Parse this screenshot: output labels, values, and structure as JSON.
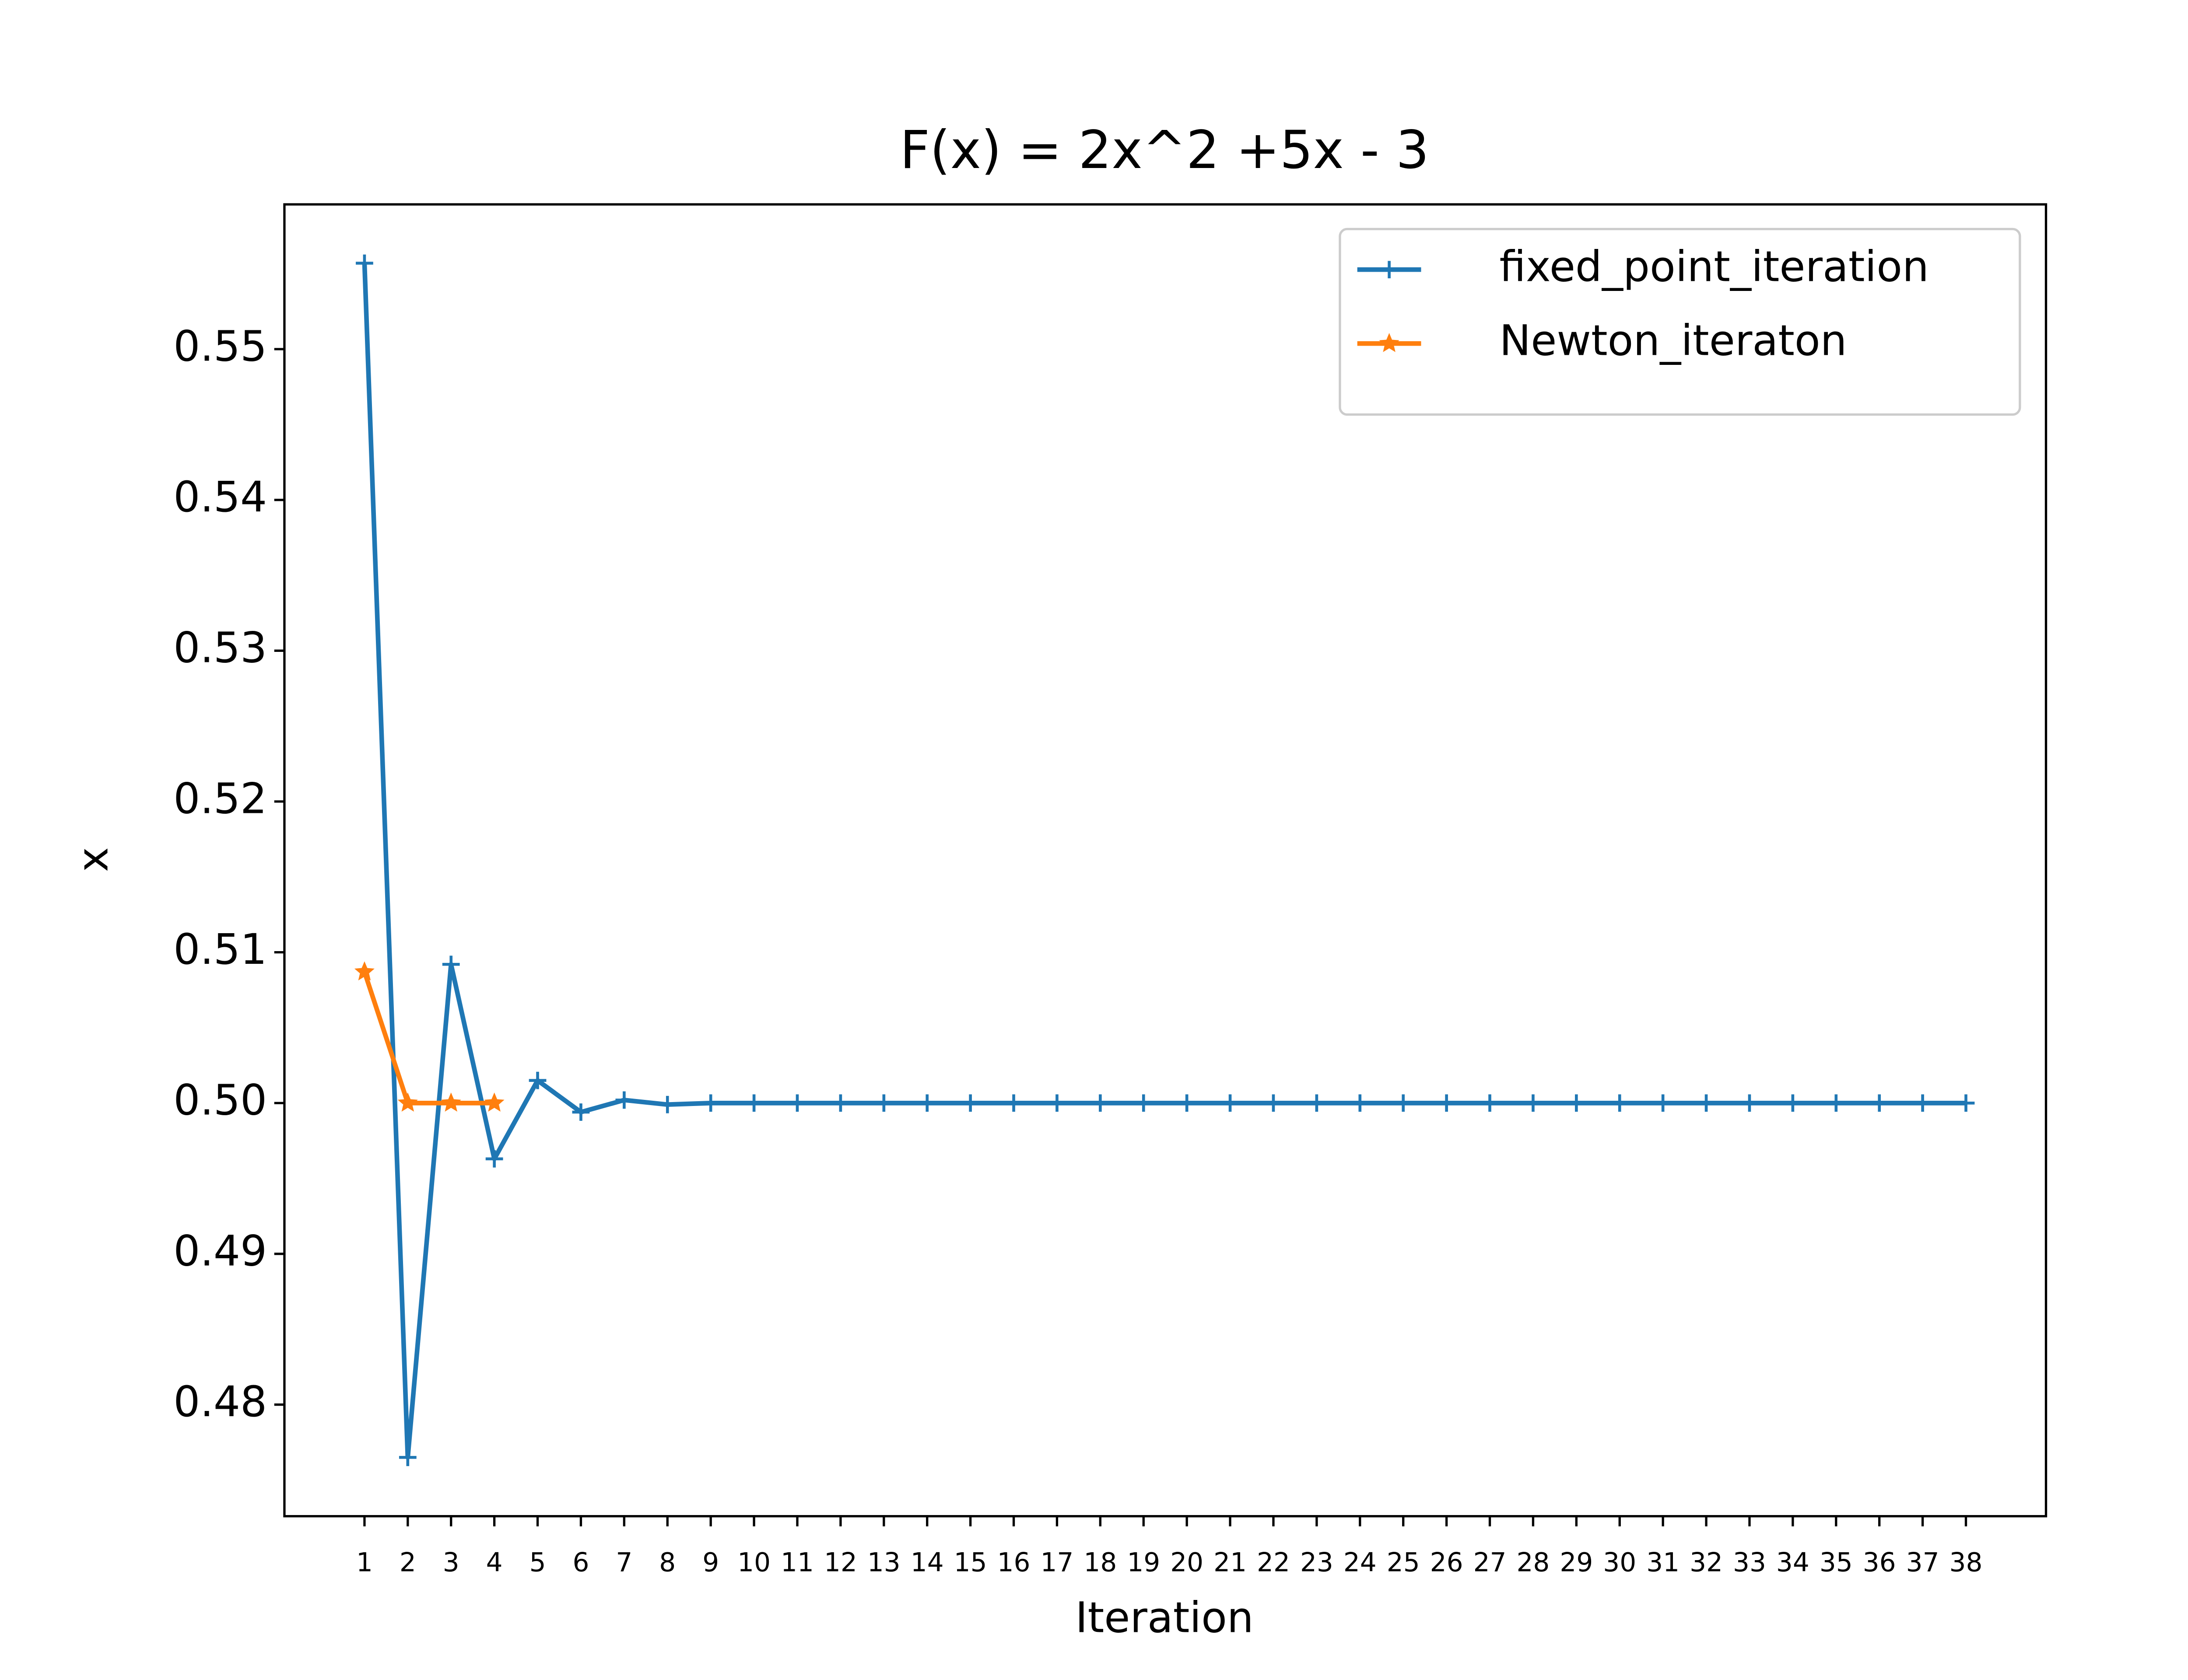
{
  "chart_data": {
    "type": "line",
    "title": "F(x) = 2x^2 +5x - 3",
    "xlabel": "Iteration",
    "ylabel": "x",
    "xlim": [
      -0.85,
      39.85
    ],
    "ylim": [
      0.4726,
      0.5596
    ],
    "xticks": [
      1,
      2,
      3,
      4,
      5,
      6,
      7,
      8,
      9,
      10,
      11,
      12,
      13,
      14,
      15,
      16,
      17,
      18,
      19,
      20,
      21,
      22,
      23,
      24,
      25,
      26,
      27,
      28,
      29,
      30,
      31,
      32,
      33,
      34,
      35,
      36,
      37,
      38
    ],
    "yticks": [
      0.48,
      0.49,
      {
        "value": 0.5,
        "label": "0.50"
      },
      0.51,
      0.52,
      0.53,
      0.54,
      0.55
    ],
    "legend": "upper right",
    "series": [
      {
        "name": "fixed_point_iteration",
        "color": "#1f77b4",
        "marker": "+",
        "x": [
          1,
          2,
          3,
          4,
          5,
          6,
          7,
          8,
          9,
          10,
          11,
          12,
          13,
          14,
          15,
          16,
          17,
          18,
          19,
          20,
          21,
          22,
          23,
          24,
          25,
          26,
          27,
          28,
          29,
          30,
          31,
          32,
          33,
          34,
          35,
          36,
          37,
          38
        ],
        "values": [
          0.5557,
          0.4765,
          0.5092,
          0.4963,
          0.5015,
          0.4994,
          0.5002,
          0.4999,
          0.5,
          0.5,
          0.5,
          0.5,
          0.5,
          0.5,
          0.5,
          0.5,
          0.5,
          0.5,
          0.5,
          0.5,
          0.5,
          0.5,
          0.5,
          0.5,
          0.5,
          0.5,
          0.5,
          0.5,
          0.5,
          0.5,
          0.5,
          0.5,
          0.5,
          0.5,
          0.5,
          0.5,
          0.5,
          0.5
        ]
      },
      {
        "name": "Newton_iteraton",
        "color": "#ff7f0e",
        "marker": "*",
        "x": [
          1,
          2,
          3,
          4
        ],
        "values": [
          0.5087,
          0.5,
          0.5,
          0.5
        ]
      }
    ]
  }
}
